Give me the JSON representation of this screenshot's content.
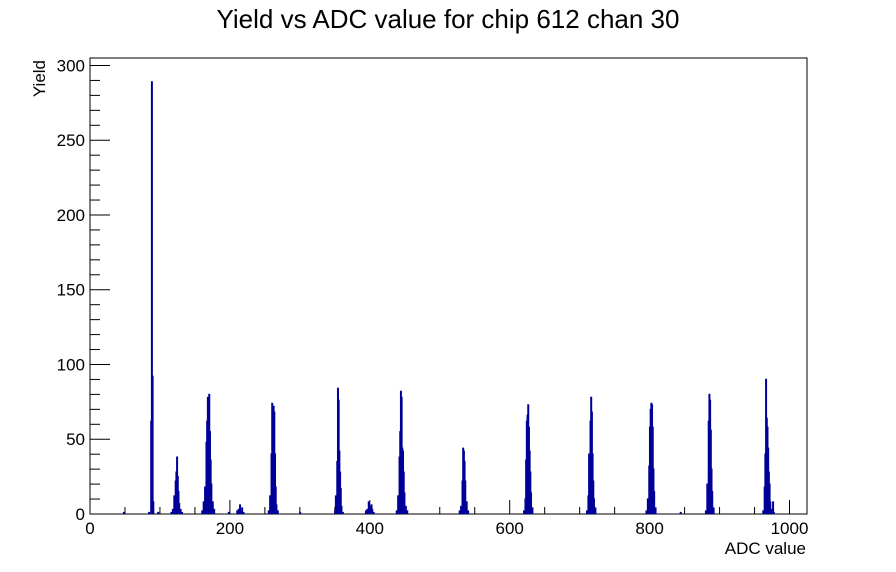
{
  "chart_data": {
    "type": "histogram",
    "title": "Yield vs ADC value for chip 612 chan 30",
    "xlabel": "ADC value",
    "ylabel": "Yield",
    "xlim": [
      0,
      1025
    ],
    "ylim": [
      0,
      305
    ],
    "x_ticks": [
      0,
      200,
      400,
      600,
      800,
      1000
    ],
    "y_ticks": [
      0,
      50,
      100,
      150,
      200,
      250,
      300
    ],
    "bin_width": 1,
    "line_color": "#000099",
    "grid": false,
    "bins": [
      [
        48,
        1
      ],
      [
        84,
        1
      ],
      [
        87,
        62
      ],
      [
        88,
        289
      ],
      [
        89,
        92
      ],
      [
        90,
        8
      ],
      [
        97,
        1
      ],
      [
        116,
        1
      ],
      [
        118,
        3
      ],
      [
        120,
        12
      ],
      [
        122,
        22
      ],
      [
        123,
        28
      ],
      [
        124,
        38
      ],
      [
        125,
        25
      ],
      [
        126,
        15
      ],
      [
        127,
        7
      ],
      [
        129,
        3
      ],
      [
        131,
        1
      ],
      [
        160,
        2
      ],
      [
        162,
        8
      ],
      [
        164,
        18
      ],
      [
        166,
        48
      ],
      [
        167,
        62
      ],
      [
        168,
        78
      ],
      [
        169,
        64
      ],
      [
        170,
        80
      ],
      [
        171,
        55
      ],
      [
        172,
        36
      ],
      [
        173,
        20
      ],
      [
        175,
        8
      ],
      [
        177,
        3
      ],
      [
        198,
        1
      ],
      [
        210,
        2
      ],
      [
        212,
        3
      ],
      [
        214,
        6
      ],
      [
        215,
        2
      ],
      [
        217,
        4
      ],
      [
        219,
        1
      ],
      [
        255,
        2
      ],
      [
        257,
        12
      ],
      [
        259,
        40
      ],
      [
        260,
        74
      ],
      [
        261,
        55
      ],
      [
        262,
        72
      ],
      [
        263,
        68
      ],
      [
        264,
        40
      ],
      [
        265,
        18
      ],
      [
        266,
        6
      ],
      [
        268,
        2
      ],
      [
        300,
        1
      ],
      [
        350,
        2
      ],
      [
        351,
        12
      ],
      [
        352,
        8
      ],
      [
        353,
        35
      ],
      [
        354,
        84
      ],
      [
        355,
        76
      ],
      [
        356,
        42
      ],
      [
        357,
        28
      ],
      [
        358,
        17
      ],
      [
        359,
        5
      ],
      [
        361,
        1
      ],
      [
        394,
        2
      ],
      [
        396,
        3
      ],
      [
        398,
        8
      ],
      [
        400,
        5
      ],
      [
        402,
        6
      ],
      [
        403,
        3
      ],
      [
        405,
        1
      ],
      [
        438,
        2
      ],
      [
        440,
        12
      ],
      [
        442,
        38
      ],
      [
        443,
        55
      ],
      [
        444,
        82
      ],
      [
        445,
        78
      ],
      [
        446,
        44
      ],
      [
        447,
        42
      ],
      [
        448,
        28
      ],
      [
        449,
        14
      ],
      [
        451,
        5
      ],
      [
        453,
        2
      ],
      [
        528,
        2
      ],
      [
        530,
        5
      ],
      [
        532,
        22
      ],
      [
        533,
        44
      ],
      [
        534,
        42
      ],
      [
        535,
        35
      ],
      [
        536,
        22
      ],
      [
        538,
        8
      ],
      [
        540,
        2
      ],
      [
        620,
        2
      ],
      [
        622,
        10
      ],
      [
        623,
        36
      ],
      [
        624,
        62
      ],
      [
        625,
        66
      ],
      [
        626,
        73
      ],
      [
        627,
        58
      ],
      [
        628,
        42
      ],
      [
        629,
        28
      ],
      [
        630,
        14
      ],
      [
        632,
        4
      ],
      [
        710,
        2
      ],
      [
        712,
        12
      ],
      [
        713,
        40
      ],
      [
        714,
        35
      ],
      [
        715,
        62
      ],
      [
        716,
        78
      ],
      [
        717,
        68
      ],
      [
        718,
        40
      ],
      [
        719,
        22
      ],
      [
        720,
        10
      ],
      [
        722,
        4
      ],
      [
        795,
        2
      ],
      [
        797,
        10
      ],
      [
        799,
        32
      ],
      [
        800,
        58
      ],
      [
        801,
        70
      ],
      [
        802,
        74
      ],
      [
        803,
        73
      ],
      [
        804,
        58
      ],
      [
        805,
        30
      ],
      [
        806,
        15
      ],
      [
        808,
        4
      ],
      [
        844,
        1
      ],
      [
        880,
        2
      ],
      [
        882,
        20
      ],
      [
        883,
        10
      ],
      [
        884,
        62
      ],
      [
        885,
        80
      ],
      [
        886,
        76
      ],
      [
        887,
        56
      ],
      [
        888,
        30
      ],
      [
        889,
        15
      ],
      [
        891,
        4
      ],
      [
        962,
        2
      ],
      [
        964,
        18
      ],
      [
        965,
        40
      ],
      [
        966,
        90
      ],
      [
        967,
        64
      ],
      [
        968,
        58
      ],
      [
        969,
        44
      ],
      [
        970,
        28
      ],
      [
        971,
        20
      ],
      [
        972,
        8
      ],
      [
        974,
        3
      ],
      [
        976,
        8
      ],
      [
        977,
        1
      ]
    ]
  }
}
